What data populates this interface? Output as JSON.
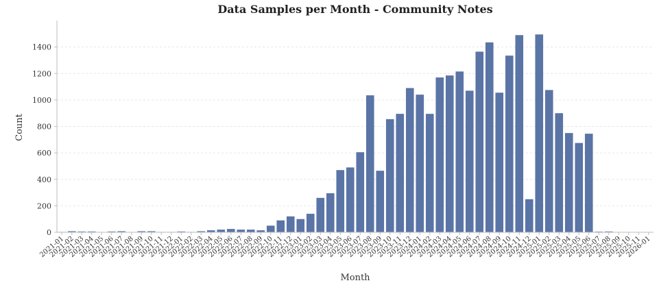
{
  "chart_data": {
    "type": "bar",
    "title": "Data Samples per Month - Community Notes",
    "xlabel": "Month",
    "ylabel": "Count",
    "ylim": [
      0,
      1600
    ],
    "yticks": [
      0,
      200,
      400,
      600,
      800,
      1000,
      1200,
      1400
    ],
    "grid": "horizontal",
    "bar_color": "#5a74a6",
    "categories": [
      "2021-01",
      "2021-02",
      "2021-03",
      "2021-04",
      "2021-05",
      "2021-06",
      "2021-07",
      "2021-08",
      "2021-09",
      "2021-10",
      "2021-11",
      "2021-12",
      "2022-01",
      "2022-02",
      "2022-03",
      "2022-04",
      "2022-05",
      "2022-06",
      "2022-07",
      "2022-08",
      "2022-09",
      "2022-10",
      "2022-11",
      "2022-12",
      "2023-01",
      "2023-02",
      "2023-03",
      "2023-04",
      "2023-05",
      "2023-06",
      "2023-07",
      "2023-08",
      "2023-09",
      "2023-10",
      "2023-11",
      "2023-12",
      "2024-01",
      "2024-02",
      "2024-03",
      "2024-04",
      "2024-05",
      "2024-06",
      "2024-07",
      "2024-08",
      "2024-09",
      "2024-10",
      "2024-11",
      "2024-12",
      "2025-01",
      "2025-02",
      "2025-03",
      "2025-04",
      "2025-05",
      "2025-06",
      "2025-07",
      "2025-08",
      "2025-09",
      "2025-10",
      "2025-11",
      "2026-01"
    ],
    "values": [
      3,
      8,
      6,
      6,
      0,
      6,
      8,
      0,
      8,
      8,
      3,
      3,
      6,
      3,
      8,
      15,
      20,
      25,
      20,
      20,
      15,
      50,
      90,
      120,
      100,
      140,
      260,
      295,
      470,
      490,
      605,
      1035,
      465,
      855,
      895,
      1090,
      1040,
      895,
      1170,
      1185,
      1215,
      1070,
      1365,
      1435,
      1055,
      1335,
      1490,
      250,
      1495,
      1075,
      900,
      750,
      675,
      745,
      5,
      6,
      0,
      0,
      0,
      0
    ]
  }
}
